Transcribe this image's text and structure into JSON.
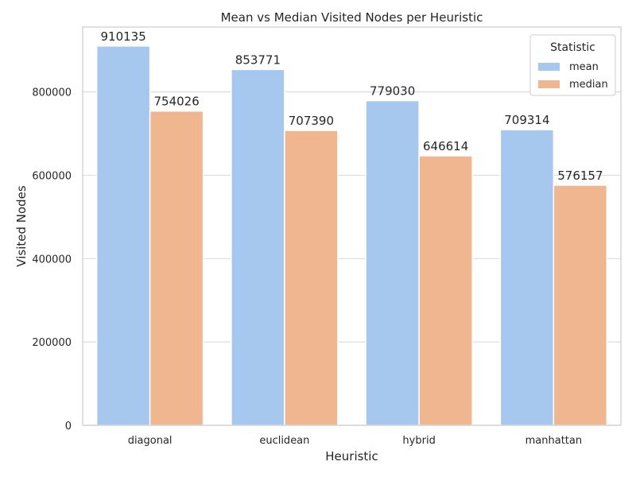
{
  "chart_data": {
    "type": "bar",
    "title": "Mean vs Median Visited Nodes per Heuristic",
    "xlabel": "Heuristic",
    "ylabel": "Visited Nodes",
    "categories": [
      "diagonal",
      "euclidean",
      "hybrid",
      "manhattan"
    ],
    "series": [
      {
        "name": "mean",
        "color": "#a7c8ee",
        "values": [
          910135,
          853771,
          779030,
          709314
        ]
      },
      {
        "name": "median",
        "color": "#f0b690",
        "values": [
          754026,
          707390,
          646614,
          576157
        ]
      }
    ],
    "ylim": [
      0,
      955642
    ],
    "yticks": [
      0,
      200000,
      400000,
      600000,
      800000
    ],
    "grid": true,
    "legend": {
      "title": "Statistic",
      "position": "top-right"
    }
  }
}
